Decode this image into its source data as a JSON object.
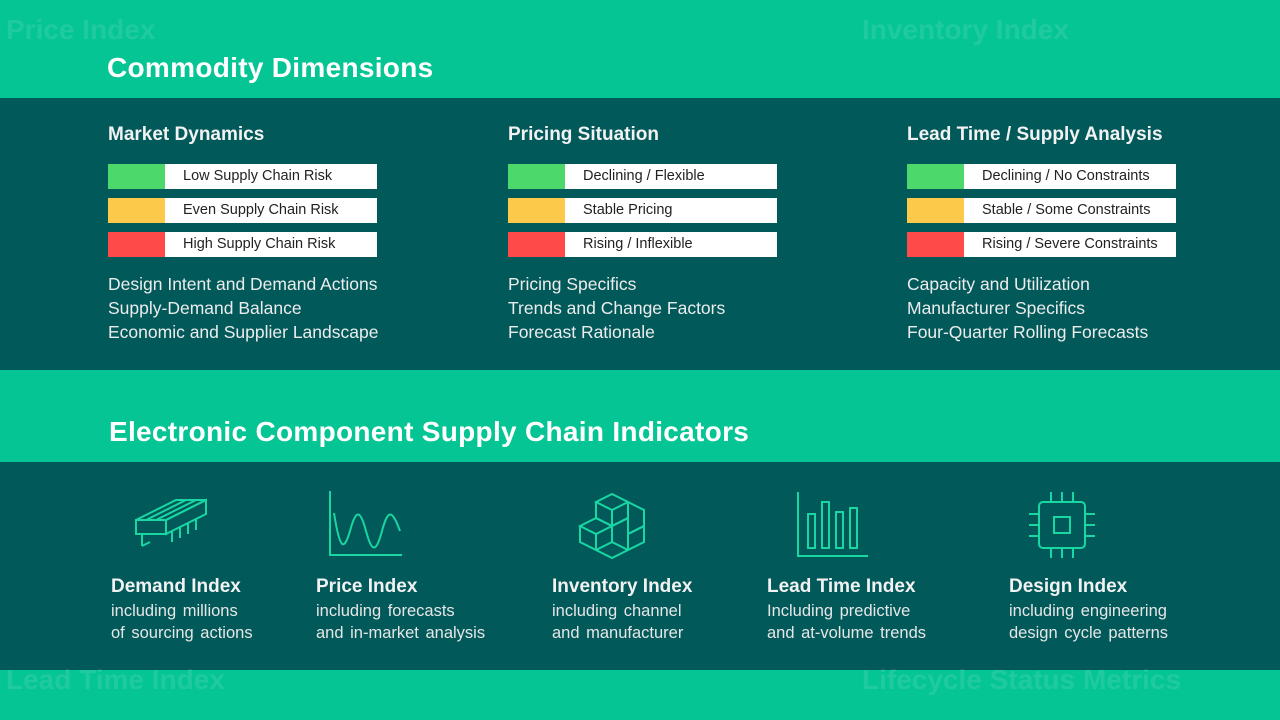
{
  "background_words": [
    "Price Index",
    "Inventory Index",
    "Lead Time Index",
    "Lifecycle Status Metrics"
  ],
  "colors": {
    "green": "#4cd86a",
    "yellow": "#fdc94a",
    "red": "#ff4a4a",
    "teal_dark": "#02595a",
    "teal_light": "#06c595",
    "icon_stroke": "#1ad6a2"
  },
  "commodity": {
    "title": "Commodity Dimensions",
    "columns": [
      {
        "heading": "Market Dynamics",
        "legend": [
          "Low Supply Chain Risk",
          "Even Supply Chain Risk",
          "High Supply Chain Risk"
        ],
        "items": [
          "Design Intent and Demand Actions",
          "Supply-Demand Balance",
          "Economic and Supplier Landscape"
        ]
      },
      {
        "heading": "Pricing Situation",
        "legend": [
          "Declining / Flexible",
          "Stable Pricing",
          "Rising / Inflexible"
        ],
        "items": [
          "Pricing Specifics",
          "Trends and Change Factors",
          "Forecast Rationale"
        ]
      },
      {
        "heading": "Lead Time / Supply Analysis",
        "legend": [
          "Declining / No Constraints",
          "Stable / Some Constraints",
          "Rising / Severe Constraints"
        ],
        "items": [
          "Capacity and Utilization",
          "Manufacturer Specifics",
          "Four-Quarter Rolling Forecasts"
        ]
      }
    ]
  },
  "indicators": {
    "title": "Electronic Component Supply Chain Indicators",
    "items": [
      {
        "icon": "chip-module-icon",
        "title": "Demand Index",
        "line1": "including millions",
        "line2": "of sourcing actions"
      },
      {
        "icon": "wave-chart-icon",
        "title": "Price Index",
        "line1": "including forecasts",
        "line2": "and in-market analysis"
      },
      {
        "icon": "stacked-cubes-icon",
        "title": "Inventory Index",
        "line1": "including channel",
        "line2": "and manufacturer"
      },
      {
        "icon": "bar-chart-icon",
        "title": "Lead Time Index",
        "line1": "Including predictive",
        "line2": "and at-volume trends"
      },
      {
        "icon": "processor-icon",
        "title": "Design Index",
        "line1": "including engineering",
        "line2": "design cycle patterns"
      }
    ]
  }
}
